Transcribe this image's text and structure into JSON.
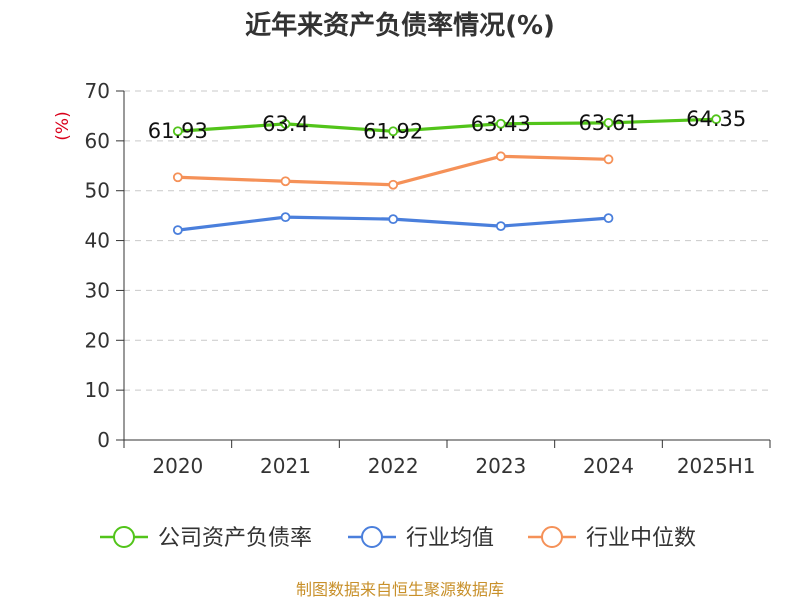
{
  "chart_data": {
    "type": "line",
    "title": "近年来资产负债率情况(%)",
    "ylabel": "(%)",
    "xlabel": "",
    "categories": [
      "2020",
      "2021",
      "2022",
      "2023",
      "2024",
      "2025H1"
    ],
    "ylim": [
      0,
      70
    ],
    "yticks": [
      0,
      10,
      20,
      30,
      40,
      50,
      60,
      70
    ],
    "grid": true,
    "legend_position": "bottom",
    "series": [
      {
        "name": "公司资产负债率",
        "color": "#52c41a",
        "values": [
          61.93,
          63.4,
          61.92,
          63.43,
          63.61,
          64.35
        ],
        "labels": [
          "61.93",
          "63.4",
          "61.92",
          "63.43",
          "63.61",
          "64.35"
        ]
      },
      {
        "name": "行业均值",
        "color": "#4a7fdc",
        "values": [
          42.1,
          44.7,
          44.3,
          42.9,
          44.5,
          null
        ]
      },
      {
        "name": "行业中位数",
        "color": "#f59158",
        "values": [
          52.7,
          51.9,
          51.2,
          56.9,
          56.3,
          null
        ]
      }
    ]
  },
  "footer": {
    "source": "制图数据来自恒生聚源数据库"
  }
}
